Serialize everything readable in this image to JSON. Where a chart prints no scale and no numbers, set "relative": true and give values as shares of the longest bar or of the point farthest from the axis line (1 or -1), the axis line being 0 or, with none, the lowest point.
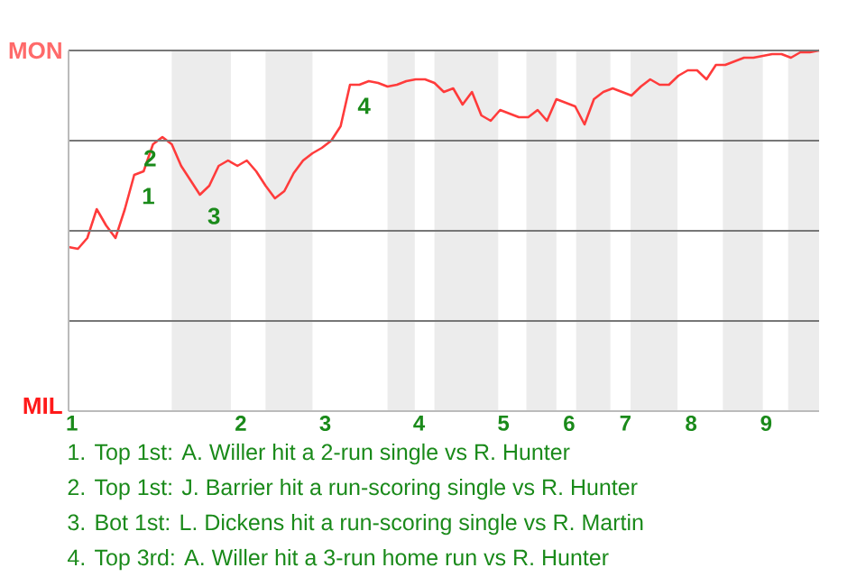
{
  "chart_data": {
    "type": "line",
    "relative": true,
    "categories": [
      "1",
      null,
      null,
      null,
      null,
      null,
      null,
      null,
      null,
      null,
      null,
      null,
      null,
      null,
      null,
      null,
      null,
      null,
      "2",
      null,
      null,
      null,
      null,
      null,
      null,
      null,
      null,
      "3",
      null,
      null,
      null,
      null,
      null,
      null,
      null,
      null,
      null,
      "4",
      null,
      null,
      null,
      null,
      null,
      null,
      null,
      null,
      "5",
      null,
      null,
      null,
      null,
      null,
      null,
      "6",
      null,
      null,
      null,
      null,
      null,
      "7",
      null,
      null,
      null,
      null,
      null,
      null,
      "8",
      null,
      null,
      null,
      null,
      null,
      null,
      null,
      "9",
      null,
      null,
      null,
      null,
      null,
      null
    ],
    "series": [
      {
        "color": "#ff3b3b",
        "values": [
          0.455,
          0.45,
          0.48,
          0.56,
          0.515,
          0.48,
          0.56,
          0.655,
          0.665,
          0.74,
          0.76,
          0.74,
          0.68,
          0.64,
          0.6,
          0.625,
          0.68,
          0.695,
          0.68,
          0.695,
          0.665,
          0.625,
          0.59,
          0.61,
          0.66,
          0.695,
          0.715,
          0.73,
          0.75,
          0.79,
          0.905,
          0.905,
          0.915,
          0.91,
          0.9,
          0.905,
          0.915,
          0.92,
          0.92,
          0.91,
          0.885,
          0.895,
          0.85,
          0.885,
          0.82,
          0.805,
          0.835,
          0.825,
          0.815,
          0.815,
          0.835,
          0.805,
          0.865,
          0.855,
          0.845,
          0.795,
          0.865,
          0.885,
          0.895,
          0.885,
          0.875,
          0.9,
          0.92,
          0.905,
          0.905,
          0.93,
          0.945,
          0.945,
          0.92,
          0.96,
          0.96,
          0.97,
          0.98,
          0.98,
          0.985,
          0.99,
          0.99,
          0.98,
          0.995,
          0.995,
          1.0
        ]
      }
    ],
    "grid": "y",
    "annotations": [
      "MON",
      "MIL",
      {
        "text": "1",
        "y": 0.655
      },
      {
        "text": "2",
        "y": 0.76
      },
      {
        "text": "3",
        "y": 0.6
      },
      {
        "text": "4",
        "y": 0.905
      },
      "1. Top 1st: A. Willer hit a 2-run single vs R. Hunter",
      "2. Top 1st: J. Barrier hit a run-scoring single vs R. Hunter",
      "3. Bot 1st: L. Dickens hit a run-scoring single vs R. Martin",
      "4. Top 3rd: A. Willer hit a 3-run home run vs R. Hunter"
    ]
  }
}
